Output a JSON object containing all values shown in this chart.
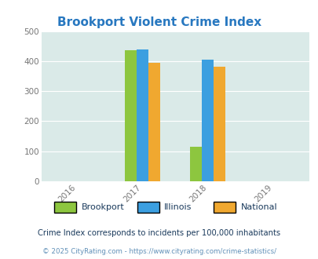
{
  "title": "Brookport Violent Crime Index",
  "bar_groups": {
    "2017": {
      "Brookport": 435,
      "Illinois": 440,
      "National": 394
    },
    "2018": {
      "Brookport": 114,
      "Illinois": 405,
      "National": 381
    }
  },
  "colors": {
    "Brookport": "#8dc63f",
    "Illinois": "#3c9fe0",
    "National": "#f0a830"
  },
  "ylim": [
    0,
    500
  ],
  "yticks": [
    0,
    100,
    200,
    300,
    400,
    500
  ],
  "bg_color": "#daeae8",
  "footnote1": "Crime Index corresponds to incidents per 100,000 inhabitants",
  "footnote2": "© 2025 CityRating.com - https://www.cityrating.com/crime-statistics/",
  "title_color": "#2878c0",
  "legend_text_color": "#1a3a5c",
  "footnote1_color": "#1a3a5c",
  "footnote2_color": "#6090b8",
  "bar_width": 0.18,
  "x_ticks": [
    2016,
    2017,
    2018,
    2019
  ],
  "xlim": [
    2015.45,
    2019.55
  ]
}
